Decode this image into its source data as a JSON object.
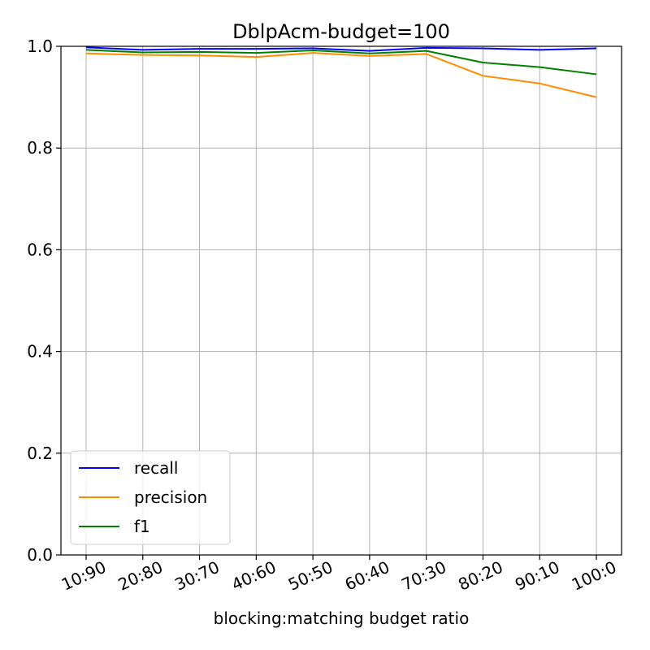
{
  "chart_data": {
    "type": "line",
    "title": "DblpAcm-budget=100",
    "xlabel": "blocking:matching  budget ratio",
    "ylabel": "",
    "categories": [
      "10:90",
      "20:80",
      "30:70",
      "40:60",
      "50:50",
      "60:40",
      "70:30",
      "80:20",
      "90:10",
      "100:0"
    ],
    "ylim": [
      0.0,
      1.0
    ],
    "yticks": [
      "0.0",
      "0.2",
      "0.4",
      "0.6",
      "0.8",
      "1.0"
    ],
    "grid": true,
    "legend_position": "lower-left",
    "series": [
      {
        "name": "recall",
        "color": "#0000ff",
        "values": [
          0.998,
          0.993,
          0.995,
          0.995,
          0.996,
          0.991,
          0.997,
          0.996,
          0.993,
          0.996
        ]
      },
      {
        "name": "precision",
        "color": "#ff8c00",
        "values": [
          0.986,
          0.983,
          0.982,
          0.979,
          0.987,
          0.981,
          0.985,
          0.942,
          0.927,
          0.9
        ]
      },
      {
        "name": "f1",
        "color": "#008000",
        "values": [
          0.993,
          0.988,
          0.989,
          0.987,
          0.992,
          0.986,
          0.991,
          0.968,
          0.959,
          0.945
        ]
      }
    ]
  }
}
